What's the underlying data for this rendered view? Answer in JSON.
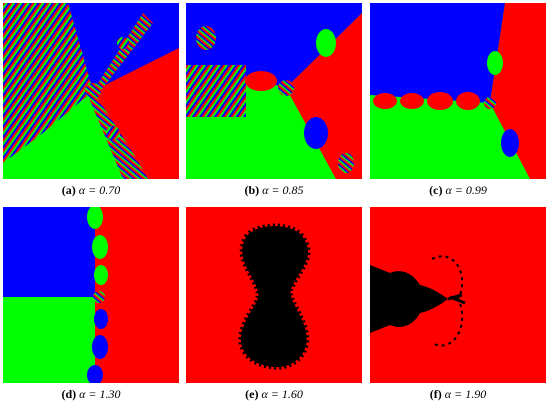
{
  "panels": [
    {
      "label": "(a)",
      "text": "α = 0.70"
    },
    {
      "label": "(b)",
      "text": "α = 0.85"
    },
    {
      "label": "(c)",
      "text": "α = 0.99"
    },
    {
      "label": "(d)",
      "text": "α = 1.30"
    },
    {
      "label": "(e)",
      "text": "α = 1.60"
    },
    {
      "label": "(f)",
      "text": "α = 1.90"
    }
  ]
}
